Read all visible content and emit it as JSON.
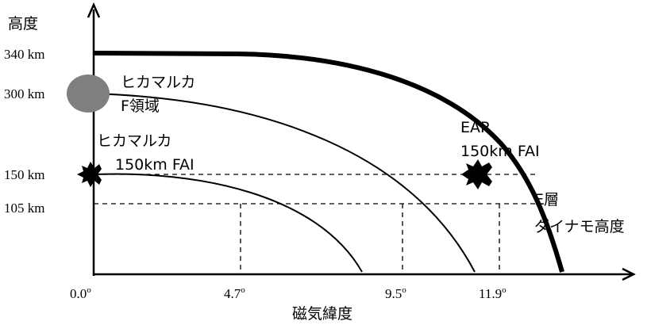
{
  "y_axis": {
    "title": "高度",
    "ticks": [
      "340 km",
      "300 km",
      "150 km",
      "105 km"
    ]
  },
  "x_axis": {
    "title": "磁気緯度",
    "ticks": [
      {
        "value": "0.0",
        "degree": "o"
      },
      {
        "value": "4.7",
        "degree": "o"
      },
      {
        "value": "9.5",
        "degree": "o"
      },
      {
        "value": "11.9",
        "degree": "o"
      }
    ]
  },
  "annotations": {
    "hikamaruka_f_line1": "ヒカマルカ",
    "hikamaruka_f_line2": "F領域",
    "hikamaruka_fai_line1": "ヒカマルカ",
    "hikamaruka_fai_line2": "150km FAI",
    "ear_line1": "EAR",
    "ear_line2": "150km FAI",
    "e_layer_line1": "E層",
    "e_layer_line2": "ダイナモ高度"
  }
}
